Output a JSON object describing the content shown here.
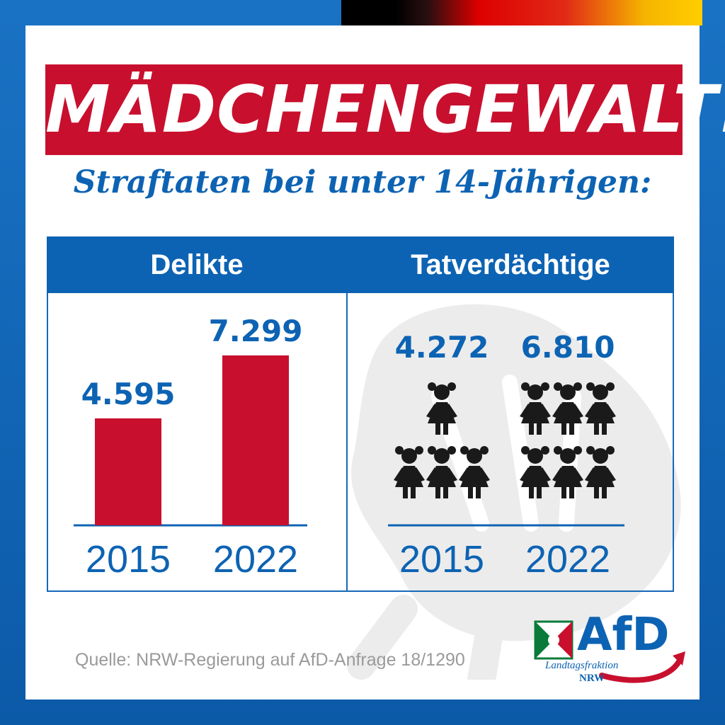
{
  "header": {
    "headline": "MÄDCHENGEWALT!",
    "subheadline": "Straftaten bei unter 14-Jährigen:"
  },
  "panels": {
    "left_title": "Delikte",
    "right_title": "Tatverdächtige"
  },
  "chart_data": [
    {
      "type": "bar",
      "title": "Delikte",
      "categories": [
        "2015",
        "2022"
      ],
      "values": [
        4595,
        7299
      ],
      "value_labels": [
        "4.595",
        "7.299"
      ]
    },
    {
      "type": "pictogram",
      "title": "Tatverdächtige",
      "categories": [
        "2015",
        "2022"
      ],
      "values": [
        4272,
        6810
      ],
      "value_labels": [
        "4.272",
        "6.810"
      ],
      "icon_counts": [
        4,
        6
      ],
      "icon": "girl-icon"
    }
  ],
  "colors": {
    "bar": "#c8102e",
    "accent": "#0d63b3",
    "icon": "#1a1a1a"
  },
  "footer": {
    "source": "Quelle: NRW-Regierung auf AfD-Anfrage 18/1290",
    "logo_text": "AfD",
    "logo_sub": "Landtagsfraktion",
    "logo_nrw": "NRW"
  }
}
